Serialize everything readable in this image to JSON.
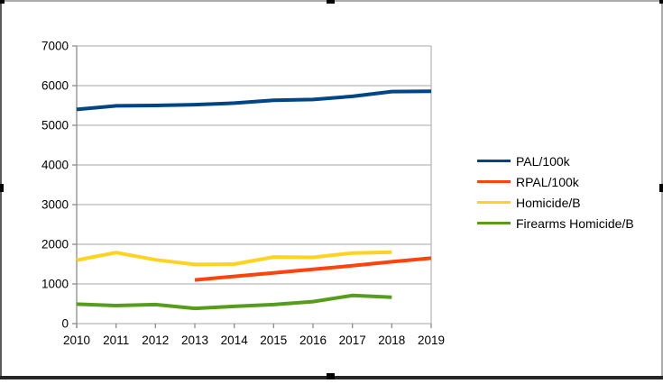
{
  "chart_data": {
    "type": "line",
    "title": "",
    "categories": [
      "2010",
      "2011",
      "2012",
      "2013",
      "2014",
      "2015",
      "2016",
      "2017",
      "2018",
      "2019"
    ],
    "series": [
      {
        "name": "PAL/100k",
        "color": "#004586",
        "values": [
          5400,
          5490,
          5500,
          5520,
          5560,
          5630,
          5650,
          5730,
          5850,
          5860
        ]
      },
      {
        "name": "RPAL/100k",
        "color": "#FF420E",
        "values": [
          null,
          null,
          null,
          1100,
          1190,
          1280,
          1370,
          1460,
          1560,
          1650
        ]
      },
      {
        "name": "Homicide/B",
        "color": "#FFD320",
        "values": [
          1600,
          1790,
          1610,
          1490,
          1500,
          1680,
          1670,
          1780,
          1800,
          null
        ]
      },
      {
        "name": "Firearms Homicide/B",
        "color": "#579D1C",
        "values": [
          490,
          455,
          480,
          385,
          435,
          480,
          555,
          710,
          665,
          null
        ]
      }
    ],
    "y_axis": {
      "min": 0,
      "max": 7000,
      "step": 1000
    },
    "x_label": "",
    "y_label": "",
    "grid": "horizontal",
    "legend_position": "right"
  },
  "colors": {
    "background": "#ffffff",
    "gridline": "#b9b9b9",
    "axis": "#8c8c8c",
    "selection_border_light": "#ababab",
    "selection_border_dark": "#5a5a5a",
    "selection_bottom_bar": "#262626",
    "selection_handle": "#000000"
  }
}
